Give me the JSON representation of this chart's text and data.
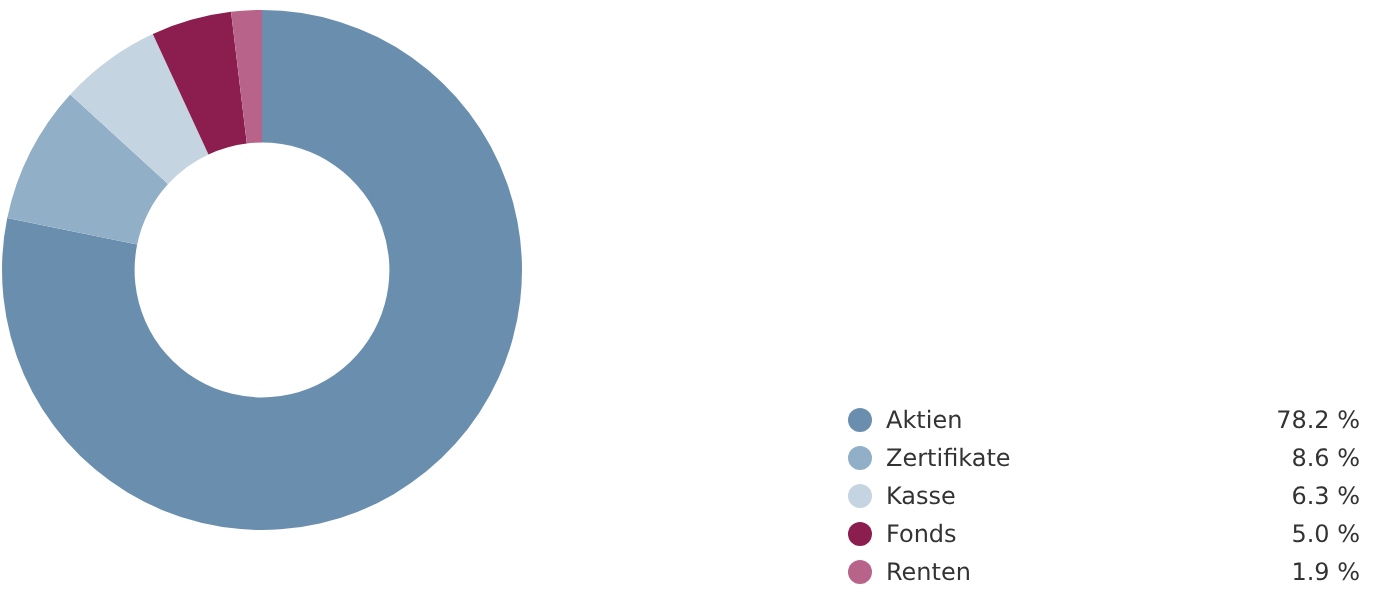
{
  "chart_data": {
    "type": "donut",
    "categories": [
      "Aktien",
      "Zertifikate",
      "Kasse",
      "Fonds",
      "Renten"
    ],
    "values": [
      78.2,
      8.6,
      6.3,
      5.0,
      1.9
    ],
    "colors": [
      "#6a8fae",
      "#91afc6",
      "#c5d4e1",
      "#8b1e4e",
      "#b8648a"
    ],
    "value_labels": [
      "78.2 %",
      "8.6 %",
      "6.3 %",
      "5.0 %",
      "1.9 %"
    ],
    "legend": "bottom right"
  }
}
